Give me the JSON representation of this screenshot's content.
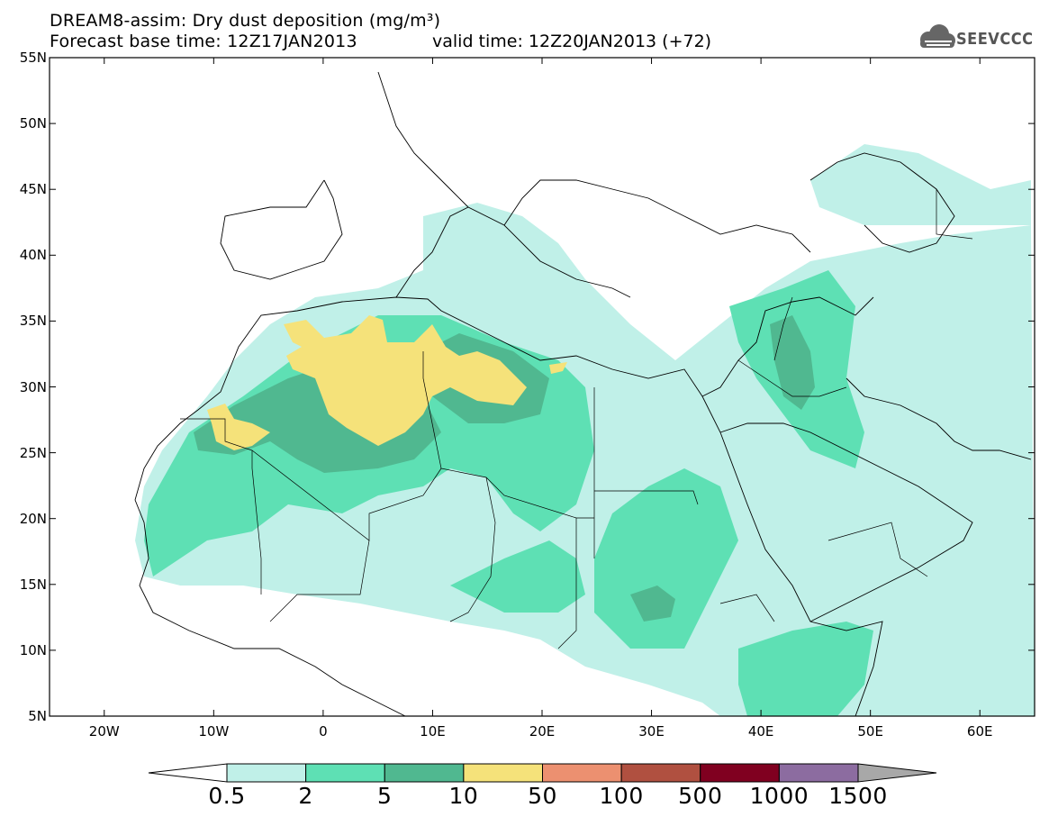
{
  "header": {
    "title_line1": "DREAM8-assim: Dry dust deposition (mg/m³)",
    "title_line2": "Forecast base time: 12Z17JAN2013",
    "valid_time": "valid time: 12Z20JAN2013 (+72)",
    "logo_text": "SEEVCCC",
    "logo_icon": "cloud-logo-icon"
  },
  "map": {
    "lat_labels": [
      "55N",
      "50N",
      "45N",
      "40N",
      "35N",
      "30N",
      "25N",
      "20N",
      "15N",
      "10N",
      "5N"
    ],
    "lon_labels": [
      "20W",
      "10W",
      "0",
      "10E",
      "20E",
      "30E",
      "40E",
      "50E",
      "60E"
    ],
    "lat_range": [
      5,
      55
    ],
    "lon_range": [
      -25,
      65
    ]
  },
  "colorbar": {
    "colors": [
      "#ffffff",
      "#c0f0e8",
      "#5ee0b4",
      "#50b890",
      "#f5e27a",
      "#ec9070",
      "#b05040",
      "#800020",
      "#8c6ca0",
      "#a8a8a8"
    ],
    "labels": [
      "0.5",
      "2",
      "5",
      "10",
      "50",
      "100",
      "500",
      "1000",
      "1500"
    ]
  }
}
